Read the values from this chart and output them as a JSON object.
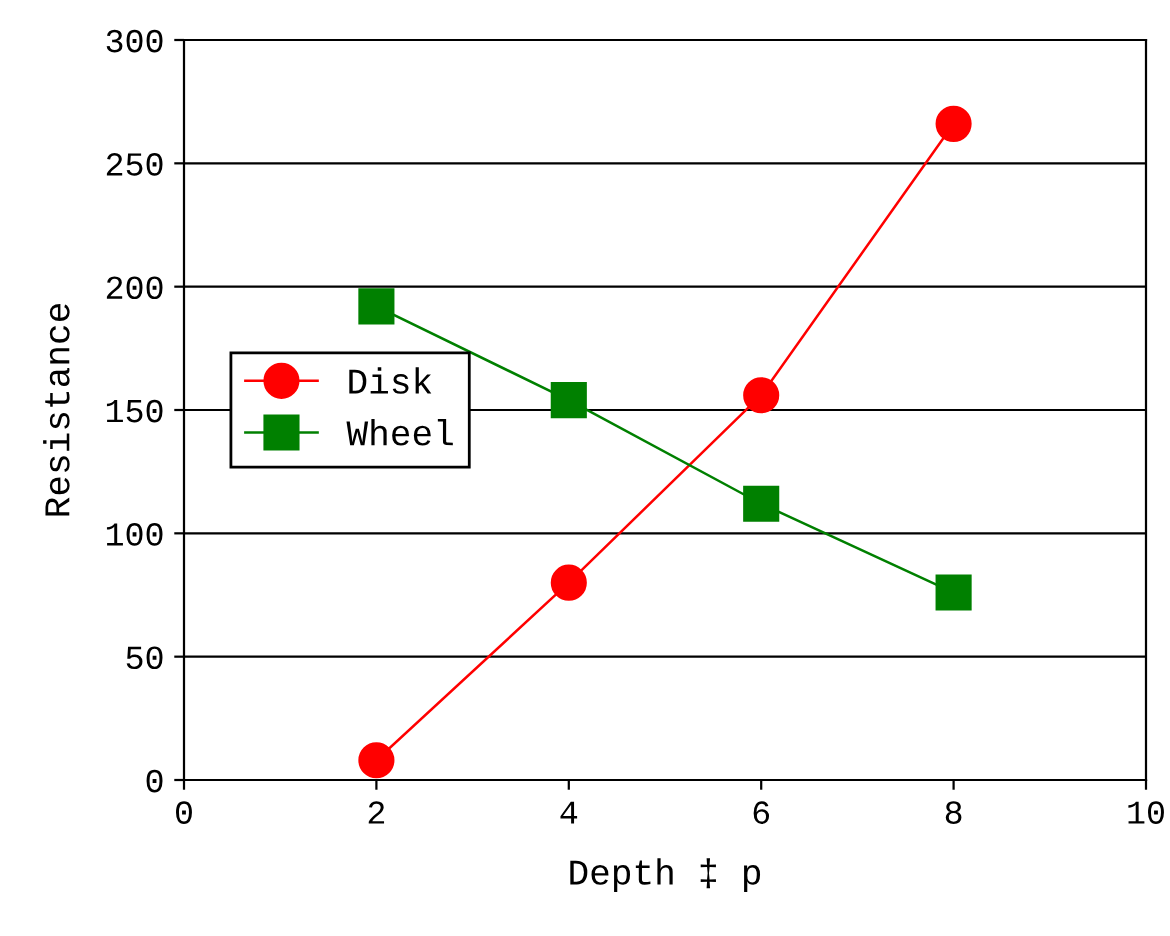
{
  "chart_data": {
    "type": "line",
    "xlabel": "Depth ‡ p",
    "ylabel": "Resistance",
    "x": [
      2,
      4,
      6,
      8
    ],
    "series": [
      {
        "name": "Disk",
        "color": "#ff0000",
        "values": [
          8,
          80,
          156,
          266
        ],
        "marker": "circle"
      },
      {
        "name": "Wheel",
        "color": "#008000",
        "values": [
          192,
          154,
          112,
          76
        ],
        "marker": "square"
      }
    ],
    "xlim": [
      0,
      10
    ],
    "xticks": [
      0,
      2,
      4,
      6,
      8,
      10
    ],
    "ylim": [
      0,
      300
    ],
    "yticks": [
      0,
      50,
      100,
      150,
      200,
      250,
      300
    ],
    "grid": "y",
    "legend": "center left",
    "line_style": "solid"
  }
}
